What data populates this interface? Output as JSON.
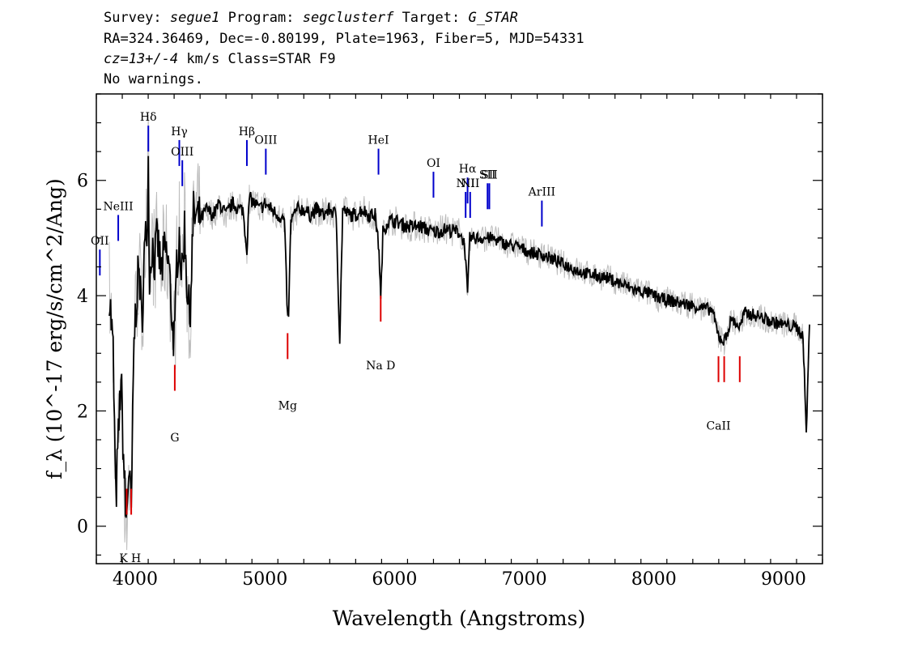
{
  "header": {
    "survey_label": "Survey:",
    "survey_value": "segue1",
    "program_label": "Program:",
    "program_value": "segclusterf",
    "target_label": "Target:",
    "target_value": "G_STAR",
    "line2": "RA=324.36469, Dec=-0.80199, Plate=1963, Fiber=5, MJD=54331",
    "cz_value": "cz=13+/-4",
    "cz_rest": "km/s Class=STAR F9",
    "warnings": "No warnings."
  },
  "colors": {
    "flux": "#000000",
    "error_band": "#bdbdbd",
    "emission_line": "#0000cc",
    "absorption_line": "#dd0000"
  },
  "chart_data": {
    "type": "line",
    "xlabel": "Wavelength (Angstroms)",
    "ylabel": "f_λ (10^-17 erg/s/cm^2/Ang)",
    "xlim": [
      3700,
      9300
    ],
    "ylim": [
      -0.65,
      7.5
    ],
    "xticks": [
      4000,
      5000,
      6000,
      7000,
      8000,
      9000
    ],
    "yticks": [
      0,
      2,
      4,
      6
    ],
    "series": [
      {
        "x": [
          3800,
          3830,
          3850,
          3870,
          3890,
          3910,
          3930,
          3950,
          3970,
          3990,
          4010,
          4030,
          4050,
          4070,
          4090,
          4101,
          4110,
          4130,
          4150,
          4170,
          4200,
          4230,
          4260,
          4290,
          4305,
          4320,
          4340,
          4360,
          4380,
          4400,
          4420,
          4450,
          4500,
          4550,
          4600,
          4650,
          4700,
          4750,
          4800,
          4830,
          4861,
          4880,
          4920,
          4960,
          5000,
          5050,
          5100,
          5150,
          5175,
          5183,
          5200,
          5250,
          5300,
          5350,
          5400,
          5450,
          5500,
          5550,
          5577,
          5600,
          5650,
          5700,
          5750,
          5800,
          5850,
          5880,
          5893,
          5910,
          5950,
          6000,
          6100,
          6200,
          6300,
          6400,
          6500,
          6540,
          6563,
          6580,
          6650,
          6750,
          6850,
          6950,
          7050,
          7150,
          7250,
          7350,
          7450,
          7550,
          7650,
          7750,
          7850,
          7950,
          8050,
          8150,
          8250,
          8350,
          8450,
          8498,
          8542,
          8600,
          8662,
          8700,
          8800,
          8900,
          9000,
          9100,
          9150,
          9175,
          9200
        ],
        "y": [
          4.1,
          3.0,
          0.4,
          1.5,
          2.6,
          1.2,
          0.0,
          1.0,
          0.2,
          3.2,
          4.0,
          4.5,
          3.5,
          4.7,
          5.2,
          6.3,
          4.3,
          4.9,
          4.6,
          5.0,
          4.4,
          4.8,
          4.5,
          3.4,
          3.2,
          4.6,
          5.1,
          4.3,
          5.2,
          4.2,
          3.6,
          5.4,
          5.3,
          5.5,
          5.4,
          5.6,
          5.4,
          5.6,
          5.5,
          5.5,
          4.8,
          5.7,
          5.6,
          5.5,
          5.6,
          5.5,
          5.4,
          5.3,
          3.6,
          3.7,
          5.3,
          5.5,
          5.5,
          5.4,
          5.5,
          5.4,
          5.5,
          5.4,
          3.2,
          5.5,
          5.4,
          5.4,
          5.5,
          5.4,
          5.4,
          4.8,
          3.9,
          5.1,
          5.3,
          5.3,
          5.2,
          5.2,
          5.1,
          5.15,
          5.1,
          4.9,
          4.0,
          5.0,
          5.0,
          5.0,
          4.9,
          4.85,
          4.75,
          4.7,
          4.6,
          4.5,
          4.4,
          4.35,
          4.3,
          4.2,
          4.1,
          4.05,
          3.95,
          3.9,
          3.85,
          3.8,
          3.75,
          3.3,
          3.2,
          3.6,
          3.45,
          3.7,
          3.65,
          3.55,
          3.5,
          3.45,
          3.3,
          1.6,
          3.5
        ]
      }
    ],
    "emission_lines": [
      {
        "label": "OII",
        "x": 3727,
        "y": 4.8
      },
      {
        "label": "NeIII",
        "x": 3869,
        "y": 5.4
      },
      {
        "label": "Hδ",
        "x": 4101,
        "y": 6.95
      },
      {
        "label": "Hγ",
        "x": 4340,
        "y": 6.7
      },
      {
        "label": "OIII",
        "x": 4363,
        "y": 6.35
      },
      {
        "label": "Hβ",
        "x": 4861,
        "y": 6.7
      },
      {
        "label": "OIII",
        "x": 5007,
        "y": 6.55
      },
      {
        "label": "HeI",
        "x": 5876,
        "y": 6.55
      },
      {
        "label": "OI",
        "x": 6300,
        "y": 6.15
      },
      {
        "label": "NII",
        "x": 6548,
        "y": 5.8
      },
      {
        "label": "Hα",
        "x": 6563,
        "y": 6.05
      },
      {
        "label": "NII",
        "x": 6583,
        "y": 5.8
      },
      {
        "label": "SII",
        "x": 6717,
        "y": 5.95
      },
      {
        "label": "SII",
        "x": 6731,
        "y": 5.95
      },
      {
        "label": "ArIII",
        "x": 7136,
        "y": 5.65
      }
    ],
    "absorption_lines": [
      {
        "label": "K",
        "x": 3934,
        "y": 0.2,
        "label_y": -0.4
      },
      {
        "label": "H",
        "x": 3969,
        "y": 0.2,
        "label_y": -0.4
      },
      {
        "label": "G",
        "x": 4305,
        "y": 2.35,
        "label_y": 1.7
      },
      {
        "label": "Mg",
        "x": 5175,
        "y": 2.9,
        "label_y": 2.25
      },
      {
        "label": "Na D",
        "x": 5893,
        "y": 3.55,
        "label_y": 2.95
      },
      {
        "label": "CaII",
        "x": 8498,
        "y": 2.5,
        "label_y": 1.9
      },
      {
        "label": "",
        "x": 8542,
        "y": 2.5,
        "label_y": 1.9
      },
      {
        "label": "",
        "x": 8662,
        "y": 2.5,
        "label_y": 1.9
      }
    ]
  }
}
